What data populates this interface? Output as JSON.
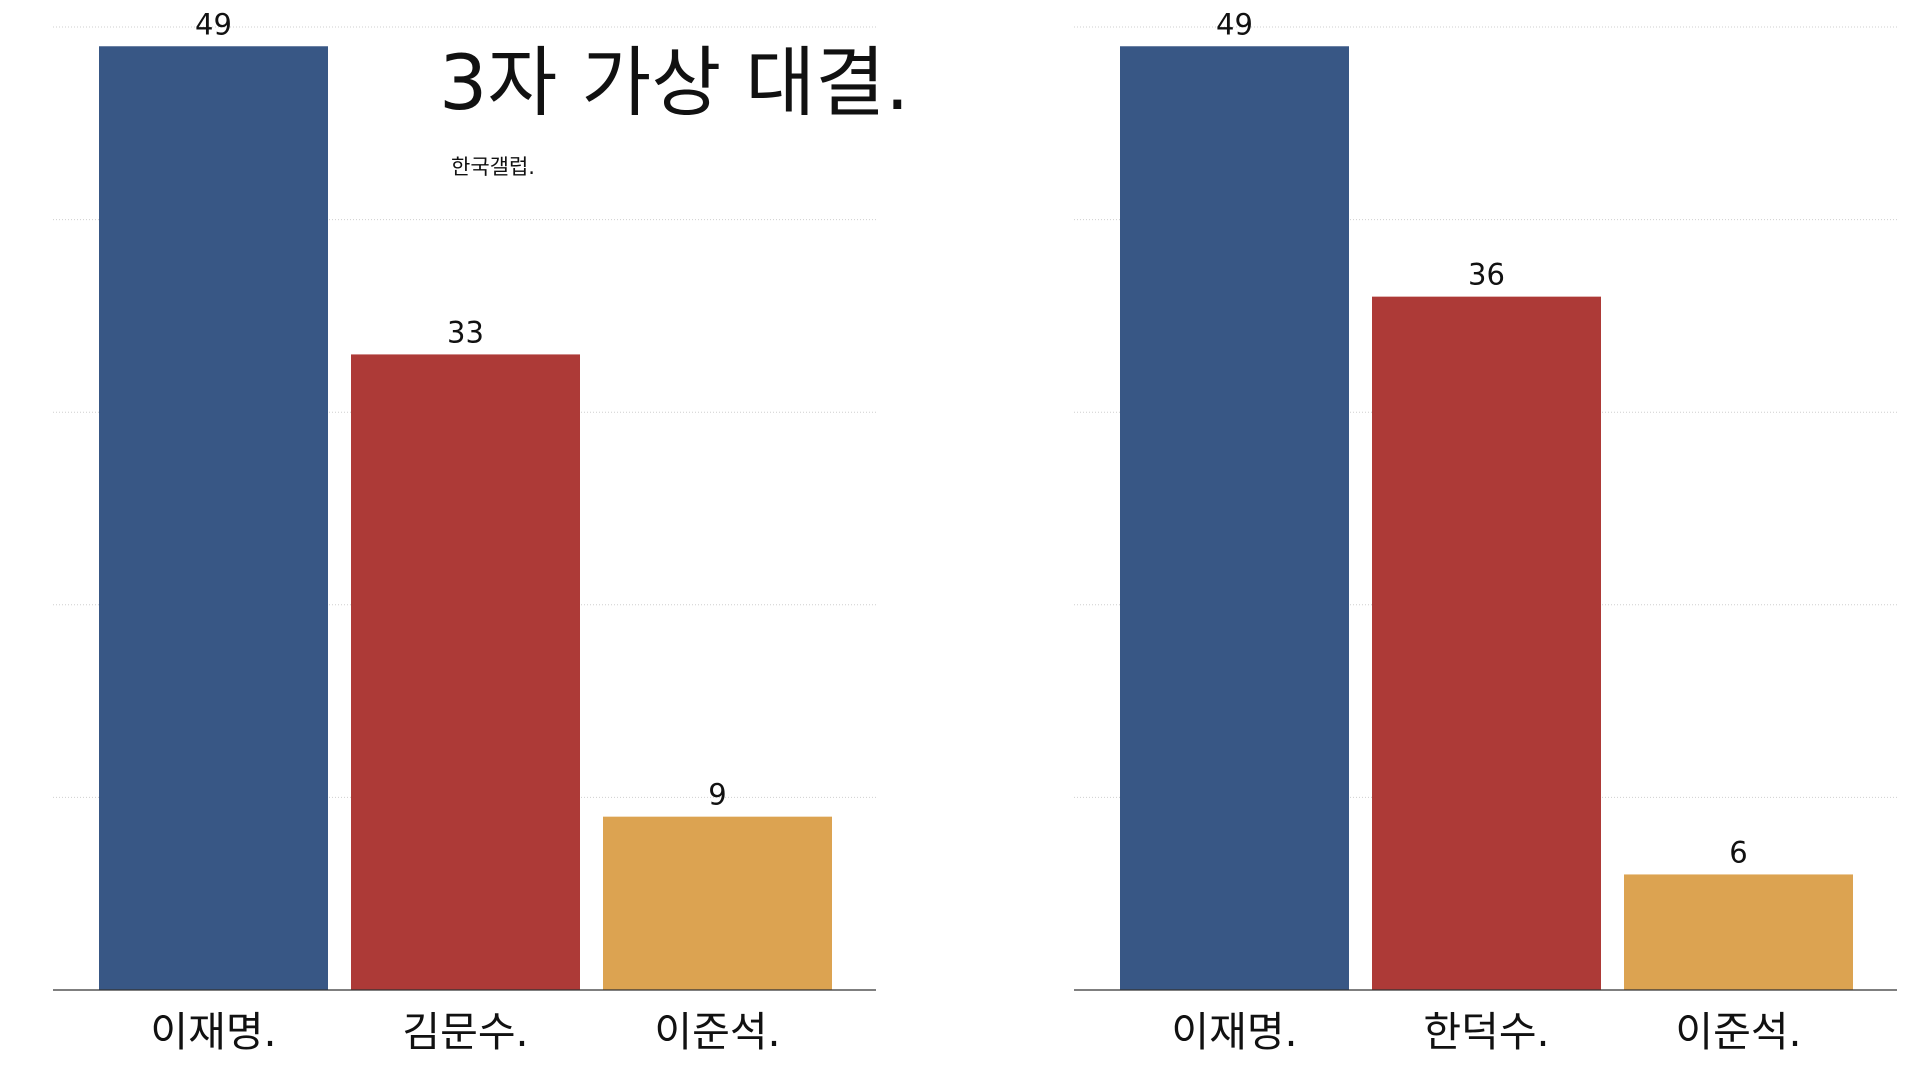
{
  "chart_data": [
    {
      "type": "bar",
      "title": "3자 가상 대결.",
      "subtitle": "한국갤럽.",
      "categories": [
        "이재명.",
        "김문수.",
        "이준석."
      ],
      "values": [
        49,
        33,
        9
      ],
      "colors": [
        "#385785",
        "#ad3a37",
        "#dca351"
      ],
      "ylim": [
        0,
        50
      ],
      "yticks": [
        0,
        10,
        20,
        30,
        40,
        50
      ],
      "grid": true
    },
    {
      "type": "bar",
      "categories": [
        "이재명.",
        "한덕수.",
        "이준석."
      ],
      "values": [
        49,
        36,
        6
      ],
      "colors": [
        "#385785",
        "#ad3a37",
        "#dca351"
      ],
      "ylim": [
        0,
        50
      ],
      "yticks": [
        0,
        10,
        20,
        30,
        40,
        50
      ],
      "grid": true
    }
  ]
}
